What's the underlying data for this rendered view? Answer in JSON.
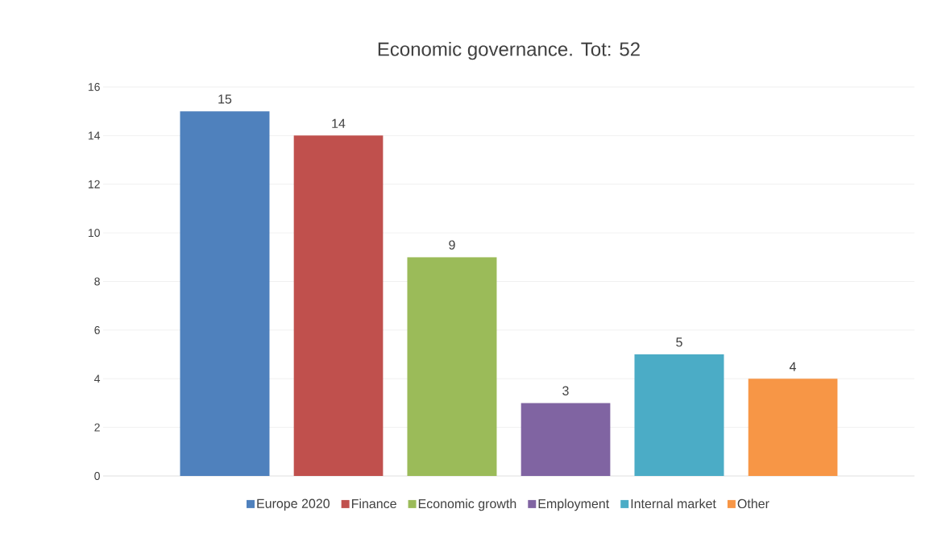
{
  "chart_data": {
    "type": "bar",
    "title": "Economic governance. Tot: 52",
    "categories": [
      null
    ],
    "series": [
      {
        "name": "Europe 2020",
        "color": "#4f81bd",
        "values": [
          15
        ]
      },
      {
        "name": "Finance",
        "color": "#c0504d",
        "values": [
          14
        ]
      },
      {
        "name": "Economic growth",
        "color": "#9bbb59",
        "values": [
          9
        ]
      },
      {
        "name": "Employment",
        "color": "#8064a2",
        "values": [
          3
        ]
      },
      {
        "name": "Internal market",
        "color": "#4bacc6",
        "values": [
          5
        ]
      },
      {
        "name": "Other",
        "color": "#f79646",
        "values": [
          4
        ]
      }
    ],
    "ylim": [
      0,
      16
    ],
    "yticks": [
      0,
      2,
      4,
      6,
      8,
      10,
      12,
      14,
      16
    ],
    "grid": "y",
    "legend": "bottom",
    "data_labels": true,
    "tick_labels": "y"
  }
}
